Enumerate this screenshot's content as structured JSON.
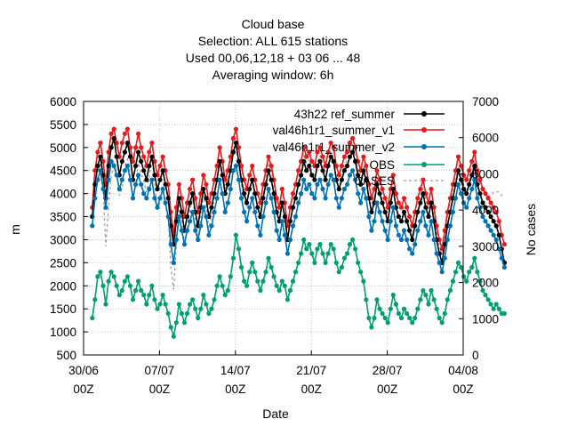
{
  "chart_data": {
    "type": "line",
    "title": [
      "Cloud base",
      "Selection: ALL    615 stations",
      "Used  00,06,12,18  + 03 06 ... 48",
      "Averaging window:  6h"
    ],
    "xlabel": "Date",
    "ylabel": "m",
    "y2label": "No cases",
    "x_ticks": [
      {
        "line1": "30/06",
        "line2": "00Z"
      },
      {
        "line1": "07/07",
        "line2": "00Z"
      },
      {
        "line1": "14/07",
        "line2": "00Z"
      },
      {
        "line1": "21/07",
        "line2": "00Z"
      },
      {
        "line1": "28/07",
        "line2": "00Z"
      },
      {
        "line1": "04/08",
        "line2": "00Z"
      }
    ],
    "xlim_days": [
      0,
      35
    ],
    "ylim": [
      500,
      6000
    ],
    "y_ticks": [
      500,
      1000,
      1500,
      2000,
      2500,
      3000,
      3500,
      4000,
      4500,
      5000,
      5500,
      6000
    ],
    "y2lim": [
      0,
      7000
    ],
    "y2_ticks": [
      0,
      1000,
      2000,
      3000,
      4000,
      5000,
      6000,
      7000
    ],
    "grid": true,
    "legend_position": "top-right",
    "x_days_start": 0.8,
    "x_days_step": 0.25,
    "series": [
      {
        "name": "43h22 ref_summer",
        "color": "#000000",
        "axis": "left",
        "marker": "circle",
        "dash": false,
        "values": [
          3500,
          4200,
          4600,
          4800,
          4400,
          3900,
          4600,
          5000,
          5200,
          4800,
          4400,
          4700,
          4900,
          5100,
          4800,
          4300,
          4600,
          4900,
          4700,
          4500,
          4300,
          4600,
          4800,
          4400,
          4100,
          4300,
          4500,
          4200,
          3900,
          3300,
          2900,
          3400,
          3900,
          3600,
          3200,
          3500,
          3800,
          4000,
          3600,
          3300,
          3700,
          4100,
          3900,
          3500,
          3700,
          4000,
          4300,
          4700,
          4400,
          4000,
          4200,
          4500,
          4900,
          5100,
          4700,
          4300,
          4000,
          3800,
          4100,
          4300,
          4000,
          3700,
          3500,
          3900,
          4200,
          4500,
          4300,
          4000,
          3600,
          3400,
          3800,
          3500,
          3000,
          3400,
          3700,
          3900,
          4200,
          4400,
          4700,
          4500,
          4600,
          4400,
          4300,
          4600,
          4700,
          4500,
          4300,
          4600,
          4800,
          4700,
          4300,
          4100,
          4300,
          4500,
          4600,
          4800,
          4900,
          4700,
          4400,
          4200,
          4500,
          4300,
          3900,
          3600,
          3800,
          4200,
          4000,
          3800,
          3600,
          3400,
          3800,
          4100,
          3700,
          3500,
          3400,
          3600,
          3400,
          3200,
          3000,
          3300,
          3600,
          3800,
          4000,
          3700,
          3500,
          3800,
          3400,
          3000,
          2700,
          2500,
          2900,
          3300,
          3600,
          3900,
          4200,
          4500,
          4300,
          4100,
          4000,
          4200,
          4400,
          4600,
          4200,
          4000,
          3800,
          3700,
          3600,
          3500,
          3400,
          3300,
          3100,
          2800,
          2500
        ]
      },
      {
        "name": "val46h1r1_summer_v1",
        "color": "#e41a1c",
        "axis": "left",
        "marker": "circle",
        "dash": false,
        "values": [
          3700,
          4500,
          4900,
          5100,
          4700,
          4200,
          4900,
          5300,
          5400,
          5100,
          4800,
          5100,
          5300,
          5400,
          5000,
          4700,
          5000,
          5300,
          5000,
          4800,
          4600,
          4900,
          5100,
          4700,
          4400,
          4600,
          4800,
          4500,
          4200,
          3600,
          3100,
          3700,
          4200,
          3900,
          3500,
          3800,
          4100,
          4300,
          3900,
          3600,
          4000,
          4400,
          4200,
          3800,
          4000,
          4300,
          4600,
          5000,
          4700,
          4300,
          4500,
          4800,
          5200,
          5400,
          5000,
          4600,
          4300,
          4100,
          4400,
          4600,
          4300,
          4000,
          3800,
          4200,
          4500,
          4800,
          4600,
          4300,
          3900,
          3700,
          4100,
          3800,
          3300,
          3700,
          4000,
          4200,
          4500,
          4700,
          5000,
          4800,
          4900,
          4700,
          4600,
          4900,
          5000,
          4800,
          4600,
          4900,
          5100,
          5000,
          4600,
          4400,
          4600,
          4800,
          4900,
          5100,
          5200,
          5000,
          4700,
          4500,
          4800,
          4600,
          4200,
          3900,
          4100,
          4500,
          4300,
          4100,
          3900,
          3700,
          4100,
          4400,
          4000,
          3800,
          3700,
          3900,
          3700,
          3500,
          3300,
          3600,
          3900,
          4100,
          4300,
          4000,
          3800,
          4100,
          3700,
          3300,
          3000,
          2800,
          3200,
          3600,
          3900,
          4200,
          4500,
          4800,
          4600,
          4400,
          4300,
          4500,
          4700,
          4900,
          4500,
          4300,
          4100,
          4000,
          3900,
          3800,
          3700,
          3600,
          3400,
          3100,
          2900
        ]
      },
      {
        "name": "val46h1r1_summer_v2",
        "color": "#0072b2",
        "axis": "left",
        "marker": "circle",
        "dash": false,
        "values": [
          3300,
          3900,
          4300,
          4500,
          4100,
          3700,
          4300,
          4700,
          4600,
          4400,
          4100,
          4300,
          4500,
          4600,
          4300,
          3900,
          4200,
          4400,
          4200,
          4000,
          3900,
          4100,
          4300,
          3900,
          3700,
          3900,
          4100,
          3800,
          3500,
          2900,
          2500,
          3000,
          3500,
          3200,
          2900,
          3200,
          3400,
          3600,
          3200,
          3000,
          3300,
          3700,
          3500,
          3100,
          3300,
          3600,
          3900,
          4300,
          4000,
          3600,
          3800,
          4100,
          4500,
          4600,
          4300,
          3900,
          3600,
          3400,
          3700,
          3900,
          3600,
          3300,
          3100,
          3500,
          3800,
          4100,
          3900,
          3600,
          3200,
          3000,
          3400,
          3100,
          2700,
          3000,
          3300,
          3500,
          3800,
          4000,
          4300,
          4100,
          4200,
          4000,
          3900,
          4200,
          4300,
          4100,
          3900,
          4200,
          4400,
          4300,
          3900,
          3700,
          3900,
          4100,
          4200,
          4400,
          4500,
          4300,
          4000,
          3800,
          4100,
          3900,
          3500,
          3200,
          3400,
          3800,
          3600,
          3400,
          3200,
          3000,
          3400,
          3700,
          3300,
          3100,
          3000,
          3200,
          3000,
          2800,
          2700,
          2900,
          3200,
          3400,
          3600,
          3300,
          3100,
          3400,
          3000,
          2700,
          2500,
          2300,
          2600,
          3000,
          3300,
          3600,
          3900,
          4200,
          4000,
          3800,
          3700,
          3900,
          4100,
          4300,
          3900,
          3700,
          3500,
          3400,
          3300,
          3200,
          3100,
          3000,
          2800,
          2600,
          2400
        ]
      },
      {
        "name": "OBS",
        "color": "#009e73",
        "axis": "left",
        "marker": "circle",
        "dash": false,
        "values": [
          1300,
          1700,
          2200,
          2300,
          2000,
          1600,
          2100,
          2300,
          2200,
          2000,
          1800,
          1900,
          2100,
          2200,
          2000,
          1700,
          1900,
          2100,
          1900,
          1800,
          1600,
          1800,
          2000,
          1700,
          1500,
          1600,
          1800,
          1600,
          1400,
          1100,
          900,
          1200,
          1600,
          1400,
          1200,
          1400,
          1600,
          1700,
          1500,
          1300,
          1500,
          1800,
          1600,
          1400,
          1500,
          1700,
          2000,
          2200,
          2000,
          1800,
          1900,
          2200,
          2600,
          3100,
          2800,
          2400,
          2100,
          2000,
          2300,
          2500,
          2300,
          2100,
          1900,
          2100,
          2300,
          2600,
          2400,
          2200,
          2000,
          1900,
          2100,
          2000,
          1700,
          1900,
          2100,
          2300,
          2500,
          2700,
          3000,
          2800,
          2900,
          2700,
          2500,
          2800,
          2900,
          2700,
          2500,
          2700,
          2900,
          2800,
          2500,
          2300,
          2400,
          2600,
          2700,
          2900,
          3000,
          2800,
          2500,
          2300,
          2100,
          1700,
          1300,
          1100,
          1300,
          1700,
          1500,
          1400,
          1300,
          1200,
          1500,
          1800,
          1600,
          1400,
          1300,
          1500,
          1400,
          1300,
          1200,
          1300,
          1500,
          1700,
          1900,
          1800,
          1600,
          1900,
          1700,
          1500,
          1300,
          1200,
          1400,
          1700,
          1900,
          2100,
          2300,
          2500,
          2400,
          2200,
          2100,
          2300,
          2400,
          2600,
          2300,
          2100,
          1900,
          1800,
          1700,
          1600,
          1500,
          1600,
          1500,
          1400,
          1400
        ]
      },
      {
        "name": "CASES",
        "color": "#999999",
        "axis": "right",
        "marker": "none",
        "dash": true,
        "values": [
          4200,
          4700,
          5100,
          5300,
          4600,
          3000,
          4100,
          4900,
          5300,
          5100,
          4400,
          4600,
          5200,
          5400,
          5000,
          4300,
          4700,
          5300,
          5000,
          4800,
          4500,
          4900,
          5400,
          4800,
          4000,
          4200,
          4600,
          4100,
          3800,
          2400,
          1800,
          3000,
          4200,
          3700,
          3100,
          3500,
          4000,
          4300,
          3800,
          3200,
          3800,
          4400,
          4100,
          3500,
          3900,
          4300,
          4800,
          5400,
          5100,
          4600,
          4900,
          5300,
          5700,
          5800,
          5200,
          4700,
          4300,
          4100,
          4600,
          4900,
          4500,
          4100,
          3800,
          4400,
          4900,
          5300,
          5100,
          4700,
          4100,
          3700,
          4200,
          3900,
          3200,
          3700,
          4100,
          4400,
          4800,
          5100,
          5500,
          5300,
          5400,
          5100,
          4900,
          5300,
          5500,
          5200,
          4900,
          5300,
          5600,
          5400,
          4900,
          4600,
          4900,
          5200,
          5400,
          5600,
          5700,
          5500,
          5100,
          4800,
          5200,
          4900,
          4400,
          4000,
          4300,
          4800,
          4500,
          4300,
          4000,
          3700,
          4200,
          4600,
          4100,
          3800,
          3700,
          4000,
          3800,
          3500,
          3300,
          3600,
          4000,
          4300,
          4600,
          4300,
          4000,
          4300,
          3800,
          3400,
          3000,
          2800,
          3300,
          3800,
          4200,
          4600,
          4900,
          5200,
          5000,
          4700,
          4500,
          4800,
          5100,
          5300,
          4900,
          4700,
          4600,
          4500,
          4400,
          4400,
          4500,
          4500,
          4500,
          4400,
          4400
        ]
      }
    ]
  }
}
